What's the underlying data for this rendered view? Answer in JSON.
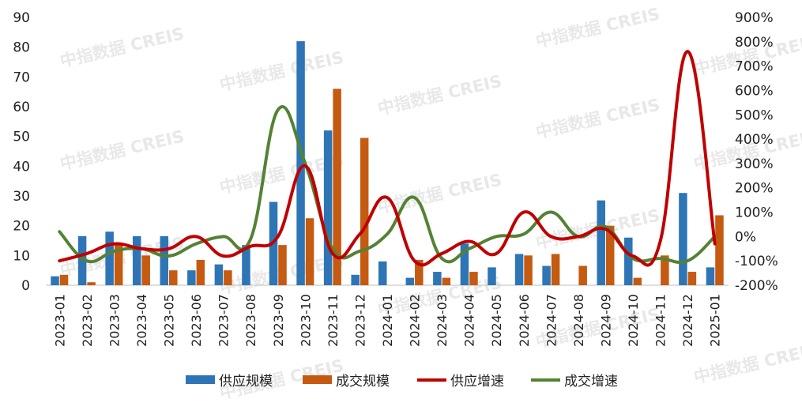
{
  "chart_data": {
    "type": "bar",
    "categories": [
      "2023-01",
      "2023-02",
      "2023-03",
      "2023-04",
      "2023-05",
      "2023-06",
      "2023-07",
      "2023-08",
      "2023-09",
      "2023-10",
      "2023-11",
      "2023-12",
      "2024-01",
      "2024-02",
      "2024-03",
      "2024-04",
      "2024-05",
      "2024-06",
      "2024-07",
      "2024-08",
      "2024-09",
      "2024-10",
      "2024-11",
      "2024-12",
      "2025-01"
    ],
    "series": [
      {
        "name": "供应规模",
        "type": "bar",
        "axis": "left",
        "color": "#2e75b6",
        "values": [
          3,
          16.5,
          18,
          16.5,
          16.5,
          5,
          7,
          13.5,
          28,
          82,
          52,
          3.5,
          8,
          2.5,
          4.5,
          14,
          6,
          10.5,
          6.5,
          0,
          28.5,
          16,
          0,
          31,
          6
        ]
      },
      {
        "name": "成交规模",
        "type": "bar",
        "axis": "left",
        "color": "#c55a11",
        "values": [
          3.5,
          1,
          13.5,
          10,
          5,
          8.5,
          5,
          0,
          13.5,
          22.5,
          66,
          49.5,
          0,
          8.5,
          2.5,
          4.5,
          0,
          10,
          10.5,
          6.5,
          20,
          2.5,
          10,
          4.5,
          23.5
        ]
      },
      {
        "name": "供应增速",
        "type": "line",
        "axis": "right",
        "color": "#c00000",
        "values": [
          -100,
          -70,
          -30,
          -50,
          -50,
          0,
          -80,
          -40,
          0,
          290,
          -70,
          10,
          160,
          -100,
          -70,
          -20,
          -70,
          100,
          0,
          0,
          30,
          -80,
          -20,
          760,
          -30
        ]
      },
      {
        "name": "成交增速",
        "type": "line",
        "axis": "right",
        "color": "#548235",
        "values": [
          20,
          -100,
          -60,
          -50,
          -80,
          -30,
          0,
          -10,
          520,
          300,
          -50,
          -60,
          10,
          160,
          -90,
          -50,
          0,
          10,
          100,
          0,
          40,
          -90,
          -90,
          -100,
          0
        ]
      }
    ],
    "y_left": {
      "min": 0,
      "max": 90,
      "ticks": [
        "0",
        "10",
        "20",
        "30",
        "40",
        "50",
        "60",
        "70",
        "80",
        "90"
      ]
    },
    "y_right": {
      "min": -200,
      "max": 900,
      "ticks": [
        "-200%",
        "-100%",
        "0%",
        "100%",
        "200%",
        "300%",
        "400%",
        "500%",
        "600%",
        "700%",
        "800%",
        "900%"
      ]
    },
    "legend_position": "bottom",
    "grid": false
  },
  "watermark": "中指数据  CREIS"
}
